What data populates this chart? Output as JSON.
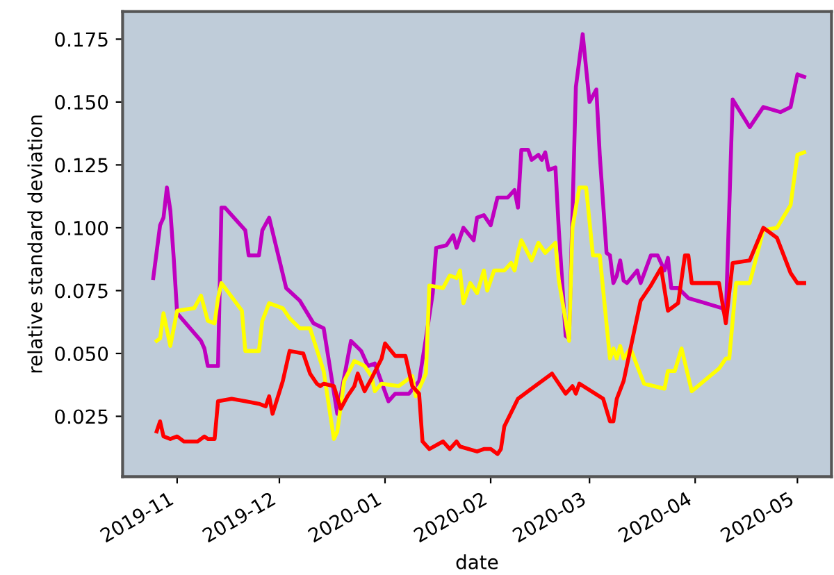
{
  "chart_data": {
    "type": "line",
    "xlabel": "date",
    "ylabel": "relative standard deviation",
    "xlim": [
      "2019-10-16",
      "2020-05-11"
    ],
    "ylim": [
      0.001,
      0.186
    ],
    "xticks": [
      {
        "value": "2019-11-01",
        "label": "2019-11"
      },
      {
        "value": "2019-12-01",
        "label": "2019-12"
      },
      {
        "value": "2020-01-01",
        "label": "2020-01"
      },
      {
        "value": "2020-02-01",
        "label": "2020-02"
      },
      {
        "value": "2020-03-01",
        "label": "2020-03"
      },
      {
        "value": "2020-04-01",
        "label": "2020-04"
      },
      {
        "value": "2020-05-01",
        "label": "2020-05"
      }
    ],
    "yticks": [
      {
        "value": 0.025,
        "label": "0.025"
      },
      {
        "value": 0.05,
        "label": "0.050"
      },
      {
        "value": 0.075,
        "label": "0.075"
      },
      {
        "value": 0.1,
        "label": "0.100"
      },
      {
        "value": 0.125,
        "label": "0.125"
      },
      {
        "value": 0.15,
        "label": "0.150"
      },
      {
        "value": 0.175,
        "label": "0.175"
      }
    ],
    "grid": false,
    "line_style": "solid",
    "series": [
      {
        "color": "#bf00bf",
        "x": [
          "2019-10-25",
          "2019-10-27",
          "2019-10-28",
          "2019-10-29",
          "2019-10-30",
          "2019-10-31",
          "2019-11-01",
          "2019-11-08",
          "2019-11-09",
          "2019-11-10",
          "2019-11-13",
          "2019-11-14",
          "2019-11-15",
          "2019-11-21",
          "2019-11-22",
          "2019-11-25",
          "2019-11-26",
          "2019-11-28",
          "2019-12-03",
          "2019-12-07",
          "2019-12-11",
          "2019-12-14",
          "2019-12-18",
          "2019-12-22",
          "2019-12-25",
          "2019-12-27",
          "2019-12-29",
          "2020-01-02",
          "2020-01-04",
          "2020-01-08",
          "2020-01-11",
          "2020-01-13",
          "2020-01-15",
          "2020-01-16",
          "2020-01-19",
          "2020-01-21",
          "2020-01-22",
          "2020-01-24",
          "2020-01-27",
          "2020-01-28",
          "2020-01-30",
          "2020-02-01",
          "2020-02-03",
          "2020-02-06",
          "2020-02-08",
          "2020-02-09",
          "2020-02-10",
          "2020-02-12",
          "2020-02-13",
          "2020-02-15",
          "2020-02-16",
          "2020-02-17",
          "2020-02-18",
          "2020-02-20",
          "2020-02-21",
          "2020-02-23",
          "2020-02-24",
          "2020-02-26",
          "2020-02-28",
          "2020-03-01",
          "2020-03-03",
          "2020-03-04",
          "2020-03-06",
          "2020-03-07",
          "2020-03-08",
          "2020-03-09",
          "2020-03-10",
          "2020-03-11",
          "2020-03-12",
          "2020-03-15",
          "2020-03-16",
          "2020-03-19",
          "2020-03-21",
          "2020-03-23",
          "2020-03-24",
          "2020-03-25",
          "2020-03-27",
          "2020-03-30",
          "2020-04-09",
          "2020-04-10",
          "2020-04-12",
          "2020-04-17",
          "2020-04-21",
          "2020-04-26",
          "2020-04-29",
          "2020-05-01",
          "2020-05-03"
        ],
        "values": [
          0.08,
          0.101,
          0.104,
          0.116,
          0.107,
          0.088,
          0.066,
          0.055,
          0.052,
          0.045,
          0.045,
          0.108,
          0.108,
          0.099,
          0.089,
          0.089,
          0.099,
          0.104,
          0.076,
          0.071,
          0.062,
          0.06,
          0.026,
          0.055,
          0.051,
          0.045,
          0.046,
          0.031,
          0.034,
          0.034,
          0.039,
          0.056,
          0.074,
          0.092,
          0.093,
          0.097,
          0.092,
          0.1,
          0.095,
          0.104,
          0.105,
          0.101,
          0.112,
          0.112,
          0.115,
          0.108,
          0.131,
          0.131,
          0.127,
          0.129,
          0.127,
          0.13,
          0.123,
          0.124,
          0.099,
          0.057,
          0.056,
          0.156,
          0.177,
          0.15,
          0.155,
          0.129,
          0.09,
          0.089,
          0.078,
          0.081,
          0.087,
          0.079,
          0.078,
          0.083,
          0.078,
          0.089,
          0.089,
          0.083,
          0.088,
          0.076,
          0.076,
          0.072,
          0.068,
          0.065,
          0.151,
          0.14,
          0.148,
          0.146,
          0.148,
          0.161,
          0.16
        ]
      },
      {
        "color": "#ffff00",
        "x": [
          "2019-10-26",
          "2019-10-27",
          "2019-10-28",
          "2019-10-30",
          "2019-11-01",
          "2019-11-06",
          "2019-11-08",
          "2019-11-10",
          "2019-11-12",
          "2019-11-13",
          "2019-11-14",
          "2019-11-20",
          "2019-11-21",
          "2019-11-25",
          "2019-11-26",
          "2019-11-28",
          "2019-12-02",
          "2019-12-04",
          "2019-12-07",
          "2019-12-10",
          "2019-12-14",
          "2019-12-17",
          "2019-12-18",
          "2019-12-20",
          "2019-12-23",
          "2019-12-26",
          "2019-12-28",
          "2019-12-29",
          "2019-12-31",
          "2020-01-05",
          "2020-01-09",
          "2020-01-10",
          "2020-01-13",
          "2020-01-14",
          "2020-01-18",
          "2020-01-20",
          "2020-01-22",
          "2020-01-23",
          "2020-01-24",
          "2020-01-26",
          "2020-01-28",
          "2020-01-30",
          "2020-01-31",
          "2020-02-02",
          "2020-02-05",
          "2020-02-07",
          "2020-02-08",
          "2020-02-09",
          "2020-02-10",
          "2020-02-13",
          "2020-02-15",
          "2020-02-17",
          "2020-02-20",
          "2020-02-21",
          "2020-02-24",
          "2020-02-25",
          "2020-02-27",
          "2020-02-29",
          "2020-03-02",
          "2020-03-04",
          "2020-03-07",
          "2020-03-08",
          "2020-03-09",
          "2020-03-10",
          "2020-03-11",
          "2020-03-13",
          "2020-03-17",
          "2020-03-23",
          "2020-03-24",
          "2020-03-26",
          "2020-03-28",
          "2020-03-31",
          "2020-04-08",
          "2020-04-10",
          "2020-04-11",
          "2020-04-13",
          "2020-04-17",
          "2020-04-21",
          "2020-04-25",
          "2020-04-29",
          "2020-05-01",
          "2020-05-03"
        ],
        "values": [
          0.055,
          0.056,
          0.066,
          0.053,
          0.067,
          0.068,
          0.073,
          0.063,
          0.062,
          0.072,
          0.078,
          0.067,
          0.051,
          0.051,
          0.063,
          0.07,
          0.068,
          0.064,
          0.06,
          0.06,
          0.043,
          0.016,
          0.019,
          0.039,
          0.047,
          0.045,
          0.041,
          0.035,
          0.038,
          0.037,
          0.041,
          0.033,
          0.042,
          0.077,
          0.076,
          0.081,
          0.08,
          0.083,
          0.07,
          0.078,
          0.074,
          0.083,
          0.075,
          0.083,
          0.083,
          0.086,
          0.083,
          0.09,
          0.095,
          0.087,
          0.094,
          0.09,
          0.094,
          0.079,
          0.055,
          0.1,
          0.116,
          0.116,
          0.089,
          0.089,
          0.048,
          0.052,
          0.048,
          0.053,
          0.048,
          0.052,
          0.038,
          0.036,
          0.043,
          0.043,
          0.052,
          0.035,
          0.044,
          0.048,
          0.048,
          0.078,
          0.078,
          0.099,
          0.1,
          0.109,
          0.129,
          0.13
        ]
      },
      {
        "color": "#ff0000",
        "x": [
          "2019-10-26",
          "2019-10-27",
          "2019-10-28",
          "2019-10-30",
          "2019-11-01",
          "2019-11-03",
          "2019-11-07",
          "2019-11-09",
          "2019-11-10",
          "2019-11-12",
          "2019-11-13",
          "2019-11-17",
          "2019-11-21",
          "2019-11-25",
          "2019-11-27",
          "2019-11-28",
          "2019-11-29",
          "2019-12-02",
          "2019-12-04",
          "2019-12-08",
          "2019-12-10",
          "2019-12-12",
          "2019-12-13",
          "2019-12-14",
          "2019-12-17",
          "2019-12-19",
          "2019-12-21",
          "2019-12-23",
          "2019-12-24",
          "2019-12-26",
          "2019-12-28",
          "2019-12-31",
          "2020-01-01",
          "2020-01-04",
          "2020-01-07",
          "2020-01-09",
          "2020-01-11",
          "2020-01-12",
          "2020-01-14",
          "2020-01-18",
          "2020-01-20",
          "2020-01-22",
          "2020-01-23",
          "2020-01-28",
          "2020-01-30",
          "2020-02-01",
          "2020-02-03",
          "2020-02-04",
          "2020-02-05",
          "2020-02-09",
          "2020-02-14",
          "2020-02-19",
          "2020-02-23",
          "2020-02-25",
          "2020-02-26",
          "2020-02-27",
          "2020-03-05",
          "2020-03-07",
          "2020-03-08",
          "2020-03-09",
          "2020-03-11",
          "2020-03-16",
          "2020-03-19",
          "2020-03-22",
          "2020-03-24",
          "2020-03-27",
          "2020-03-29",
          "2020-03-30",
          "2020-03-31",
          "2020-04-08",
          "2020-04-10",
          "2020-04-12",
          "2020-04-17",
          "2020-04-21",
          "2020-04-25",
          "2020-04-29",
          "2020-05-01",
          "2020-05-03"
        ],
        "values": [
          0.019,
          0.023,
          0.017,
          0.016,
          0.017,
          0.015,
          0.015,
          0.017,
          0.016,
          0.016,
          0.031,
          0.032,
          0.031,
          0.03,
          0.029,
          0.033,
          0.026,
          0.039,
          0.051,
          0.05,
          0.042,
          0.038,
          0.037,
          0.038,
          0.037,
          0.028,
          0.033,
          0.037,
          0.042,
          0.035,
          0.04,
          0.048,
          0.054,
          0.049,
          0.049,
          0.037,
          0.034,
          0.015,
          0.012,
          0.015,
          0.012,
          0.015,
          0.013,
          0.011,
          0.012,
          0.012,
          0.01,
          0.012,
          0.021,
          0.032,
          0.037,
          0.042,
          0.034,
          0.037,
          0.034,
          0.038,
          0.032,
          0.023,
          0.023,
          0.032,
          0.039,
          0.071,
          0.077,
          0.084,
          0.067,
          0.07,
          0.089,
          0.089,
          0.078,
          0.078,
          0.062,
          0.086,
          0.087,
          0.1,
          0.096,
          0.082,
          0.078,
          0.078
        ]
      }
    ]
  }
}
